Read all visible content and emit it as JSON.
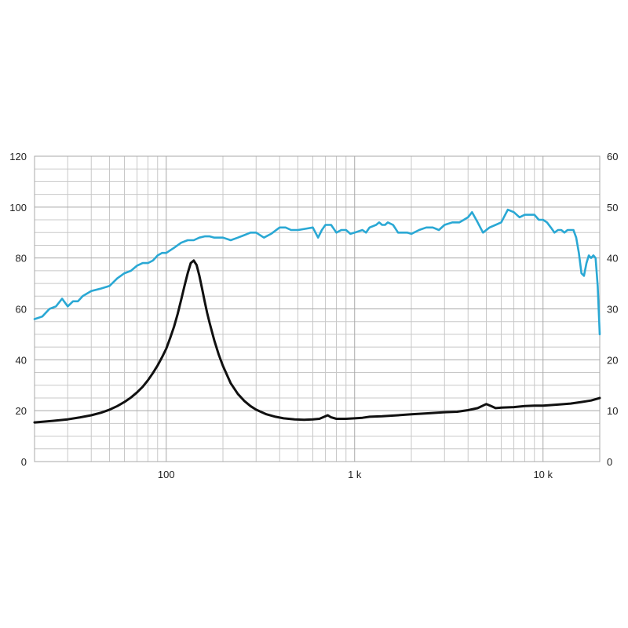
{
  "chart_data": {
    "type": "line",
    "x_scale": "log",
    "xlim": [
      20,
      20000
    ],
    "x_ticks": [
      {
        "value": 100,
        "label": "100"
      },
      {
        "value": 1000,
        "label": "1 k"
      },
      {
        "value": 10000,
        "label": "10 k"
      }
    ],
    "ylim_left": [
      0,
      120
    ],
    "y_ticks_left": [
      "0",
      "20",
      "40",
      "60",
      "80",
      "100",
      "120"
    ],
    "ylim_right": [
      0,
      60
    ],
    "y_ticks_right": [
      "0",
      "10",
      "20",
      "30",
      "40",
      "50",
      "60"
    ],
    "grid": true,
    "series": [
      {
        "color": "#2aa8d4",
        "axis": "left",
        "points": [
          [
            20,
            56
          ],
          [
            22,
            57
          ],
          [
            24,
            60
          ],
          [
            26,
            61
          ],
          [
            28,
            64
          ],
          [
            30,
            61
          ],
          [
            32,
            63
          ],
          [
            34,
            63
          ],
          [
            36,
            65
          ],
          [
            40,
            67
          ],
          [
            45,
            68
          ],
          [
            50,
            69
          ],
          [
            55,
            72
          ],
          [
            60,
            74
          ],
          [
            65,
            75
          ],
          [
            70,
            77
          ],
          [
            75,
            78
          ],
          [
            80,
            78
          ],
          [
            85,
            79
          ],
          [
            90,
            81
          ],
          [
            95,
            82
          ],
          [
            100,
            82
          ],
          [
            110,
            84
          ],
          [
            120,
            86
          ],
          [
            130,
            87
          ],
          [
            140,
            87
          ],
          [
            150,
            88
          ],
          [
            160,
            88.5
          ],
          [
            170,
            88.5
          ],
          [
            180,
            88
          ],
          [
            200,
            88
          ],
          [
            220,
            87
          ],
          [
            240,
            88
          ],
          [
            260,
            89
          ],
          [
            280,
            90
          ],
          [
            300,
            90
          ],
          [
            330,
            88
          ],
          [
            360,
            89.5
          ],
          [
            400,
            92
          ],
          [
            430,
            92
          ],
          [
            460,
            91
          ],
          [
            500,
            91
          ],
          [
            550,
            91.5
          ],
          [
            600,
            92
          ],
          [
            640,
            88
          ],
          [
            670,
            91
          ],
          [
            700,
            93
          ],
          [
            750,
            93
          ],
          [
            800,
            90
          ],
          [
            850,
            91
          ],
          [
            900,
            91
          ],
          [
            950,
            89.5
          ],
          [
            1000,
            90
          ],
          [
            1100,
            91
          ],
          [
            1150,
            90
          ],
          [
            1200,
            92
          ],
          [
            1300,
            93
          ],
          [
            1350,
            94
          ],
          [
            1400,
            93
          ],
          [
            1450,
            93
          ],
          [
            1500,
            94
          ],
          [
            1600,
            93
          ],
          [
            1700,
            90
          ],
          [
            1800,
            90
          ],
          [
            1900,
            90
          ],
          [
            2000,
            89.5
          ],
          [
            2200,
            91
          ],
          [
            2400,
            92
          ],
          [
            2600,
            92
          ],
          [
            2800,
            91
          ],
          [
            3000,
            93
          ],
          [
            3300,
            94
          ],
          [
            3600,
            94
          ],
          [
            3800,
            95
          ],
          [
            4000,
            96
          ],
          [
            4200,
            98
          ],
          [
            4500,
            94
          ],
          [
            4800,
            90
          ],
          [
            5200,
            92
          ],
          [
            5600,
            93
          ],
          [
            6000,
            94
          ],
          [
            6500,
            99
          ],
          [
            7000,
            98
          ],
          [
            7500,
            96
          ],
          [
            8000,
            97
          ],
          [
            8500,
            97
          ],
          [
            9000,
            97
          ],
          [
            9500,
            95
          ],
          [
            10000,
            95
          ],
          [
            10500,
            94
          ],
          [
            11000,
            92
          ],
          [
            11500,
            90
          ],
          [
            12000,
            91
          ],
          [
            12500,
            91
          ],
          [
            13000,
            90
          ],
          [
            13500,
            91
          ],
          [
            14000,
            91
          ],
          [
            14500,
            91
          ],
          [
            15000,
            88
          ],
          [
            15500,
            82
          ],
          [
            16000,
            74
          ],
          [
            16500,
            73
          ],
          [
            17000,
            78
          ],
          [
            17500,
            81
          ],
          [
            18000,
            80
          ],
          [
            18500,
            81
          ],
          [
            19000,
            80
          ],
          [
            19500,
            69
          ],
          [
            20000,
            50
          ]
        ]
      },
      {
        "color": "#111111",
        "axis": "right",
        "points": [
          [
            20,
            7.7
          ],
          [
            25,
            8.0
          ],
          [
            30,
            8.3
          ],
          [
            35,
            8.7
          ],
          [
            40,
            9.1
          ],
          [
            45,
            9.6
          ],
          [
            50,
            10.2
          ],
          [
            55,
            10.9
          ],
          [
            60,
            11.7
          ],
          [
            65,
            12.6
          ],
          [
            70,
            13.6
          ],
          [
            75,
            14.7
          ],
          [
            80,
            16.0
          ],
          [
            85,
            17.4
          ],
          [
            90,
            18.9
          ],
          [
            95,
            20.5
          ],
          [
            100,
            22.2
          ],
          [
            105,
            24.3
          ],
          [
            110,
            26.5
          ],
          [
            115,
            29.0
          ],
          [
            120,
            31.8
          ],
          [
            125,
            34.5
          ],
          [
            130,
            37.0
          ],
          [
            135,
            39.0
          ],
          [
            140,
            39.5
          ],
          [
            145,
            38.6
          ],
          [
            150,
            36.5
          ],
          [
            155,
            34.0
          ],
          [
            160,
            31.5
          ],
          [
            165,
            29.2
          ],
          [
            170,
            27.2
          ],
          [
            180,
            23.8
          ],
          [
            190,
            21.0
          ],
          [
            200,
            18.8
          ],
          [
            220,
            15.4
          ],
          [
            240,
            13.3
          ],
          [
            260,
            11.9
          ],
          [
            280,
            10.9
          ],
          [
            300,
            10.2
          ],
          [
            340,
            9.3
          ],
          [
            380,
            8.8
          ],
          [
            420,
            8.5
          ],
          [
            480,
            8.3
          ],
          [
            540,
            8.2
          ],
          [
            600,
            8.3
          ],
          [
            650,
            8.4
          ],
          [
            700,
            8.9
          ],
          [
            720,
            9.1
          ],
          [
            750,
            8.7
          ],
          [
            800,
            8.4
          ],
          [
            900,
            8.4
          ],
          [
            1000,
            8.5
          ],
          [
            1100,
            8.6
          ],
          [
            1200,
            8.8
          ],
          [
            1400,
            8.9
          ],
          [
            1700,
            9.1
          ],
          [
            2000,
            9.3
          ],
          [
            2500,
            9.5
          ],
          [
            3000,
            9.7
          ],
          [
            3500,
            9.8
          ],
          [
            4000,
            10.1
          ],
          [
            4500,
            10.5
          ],
          [
            5000,
            11.3
          ],
          [
            5300,
            10.9
          ],
          [
            5600,
            10.5
          ],
          [
            6000,
            10.6
          ],
          [
            7000,
            10.7
          ],
          [
            8000,
            10.9
          ],
          [
            9000,
            11.0
          ],
          [
            10000,
            11.0
          ],
          [
            12000,
            11.2
          ],
          [
            14000,
            11.4
          ],
          [
            16000,
            11.7
          ],
          [
            18000,
            12.0
          ],
          [
            20000,
            12.5
          ]
        ]
      }
    ]
  }
}
